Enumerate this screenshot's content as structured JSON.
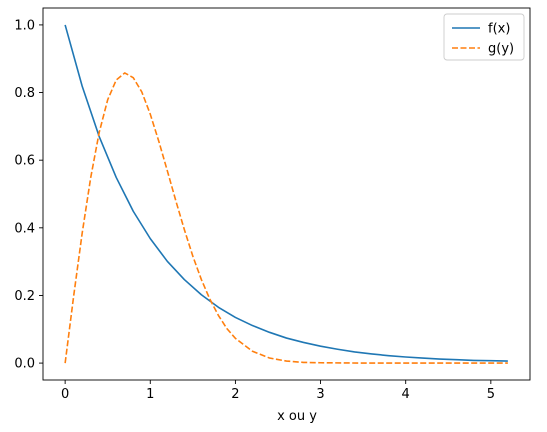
{
  "chart_data": {
    "type": "line",
    "xlabel": "x ou y",
    "ylabel": "",
    "xlim": [
      -0.26,
      5.46
    ],
    "ylim": [
      -0.05,
      1.05
    ],
    "xticks": [
      0,
      1,
      2,
      3,
      4,
      5
    ],
    "yticks": [
      0.0,
      0.2,
      0.4,
      0.6,
      0.8,
      1.0
    ],
    "xtick_labels": [
      "0",
      "1",
      "2",
      "3",
      "4",
      "5"
    ],
    "ytick_labels": [
      "0.0",
      "0.2",
      "0.4",
      "0.6",
      "0.8",
      "1.0"
    ],
    "grid": false,
    "legend_position": "top-right",
    "series": [
      {
        "name": "f(x)",
        "style": "solid",
        "color": "#1f77b4",
        "x": [
          0,
          0.2,
          0.4,
          0.6,
          0.8,
          1.0,
          1.2,
          1.4,
          1.6,
          1.8,
          2.0,
          2.2,
          2.4,
          2.6,
          2.8,
          3.0,
          3.2,
          3.4,
          3.6,
          3.8,
          4.0,
          4.2,
          4.4,
          4.6,
          4.8,
          5.0,
          5.2
        ],
        "values": [
          1.0,
          0.819,
          0.67,
          0.549,
          0.449,
          0.368,
          0.301,
          0.247,
          0.202,
          0.165,
          0.135,
          0.111,
          0.091,
          0.074,
          0.061,
          0.05,
          0.041,
          0.033,
          0.027,
          0.022,
          0.018,
          0.015,
          0.012,
          0.01,
          0.008,
          0.007,
          0.006
        ]
      },
      {
        "name": "g(y)",
        "style": "dashed",
        "color": "#ff7f0e",
        "x": [
          0,
          0.1,
          0.2,
          0.3,
          0.4,
          0.5,
          0.6,
          0.7,
          0.8,
          0.9,
          1.0,
          1.1,
          1.2,
          1.3,
          1.4,
          1.5,
          1.6,
          1.7,
          1.8,
          1.9,
          2.0,
          2.2,
          2.4,
          2.6,
          2.8,
          3.0,
          3.5,
          4.0,
          4.5,
          5.0,
          5.2
        ],
        "values": [
          0.0,
          0.198,
          0.384,
          0.548,
          0.682,
          0.779,
          0.837,
          0.858,
          0.844,
          0.802,
          0.736,
          0.656,
          0.569,
          0.48,
          0.395,
          0.316,
          0.247,
          0.189,
          0.141,
          0.102,
          0.073,
          0.035,
          0.015,
          0.006,
          0.002,
          0.001,
          0.0,
          0.0,
          0.0,
          0.0,
          0.0
        ]
      }
    ]
  }
}
